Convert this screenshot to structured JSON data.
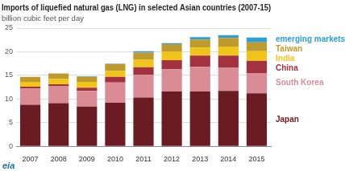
{
  "chart_data": {
    "type": "bar",
    "title": "Imports of liquefied natural gas (LNG) in selected Asian countries (2007-15)",
    "subtitle": "billion cubic feet per day",
    "source": "eia",
    "categories": [
      "2007",
      "2008",
      "2009",
      "2010",
      "2011",
      "2012",
      "2013",
      "2014",
      "2015"
    ],
    "series": [
      {
        "name": "Japan",
        "color": "#6b1b22",
        "values": [
          8.8,
          9.1,
          8.4,
          9.2,
          10.3,
          11.6,
          11.6,
          11.7,
          11.2
        ]
      },
      {
        "name": "South Korea",
        "color": "#d98c96",
        "values": [
          3.4,
          3.6,
          3.3,
          4.3,
          4.8,
          4.7,
          5.2,
          4.9,
          4.3
        ]
      },
      {
        "name": "China",
        "color": "#a3313f",
        "values": [
          0.4,
          0.4,
          0.7,
          1.2,
          1.6,
          1.9,
          2.4,
          2.6,
          2.6
        ]
      },
      {
        "name": "India",
        "color": "#f0c419",
        "values": [
          1.0,
          1.1,
          1.2,
          1.2,
          1.6,
          1.8,
          1.7,
          1.9,
          2.0
        ]
      },
      {
        "name": "Taiwan",
        "color": "#bf9a2c",
        "values": [
          1.1,
          1.2,
          1.1,
          1.5,
          1.5,
          1.6,
          1.7,
          1.8,
          1.9
        ]
      },
      {
        "name": "emerging markets",
        "color": "#2b9fd6",
        "values": [
          0,
          0,
          0.1,
          0.1,
          0.3,
          0.2,
          0.5,
          0.6,
          1.0
        ]
      }
    ],
    "ylim": [
      0,
      25
    ],
    "yticks": [
      0,
      5,
      10,
      15,
      20,
      25
    ],
    "stacked": true,
    "grid": true
  }
}
